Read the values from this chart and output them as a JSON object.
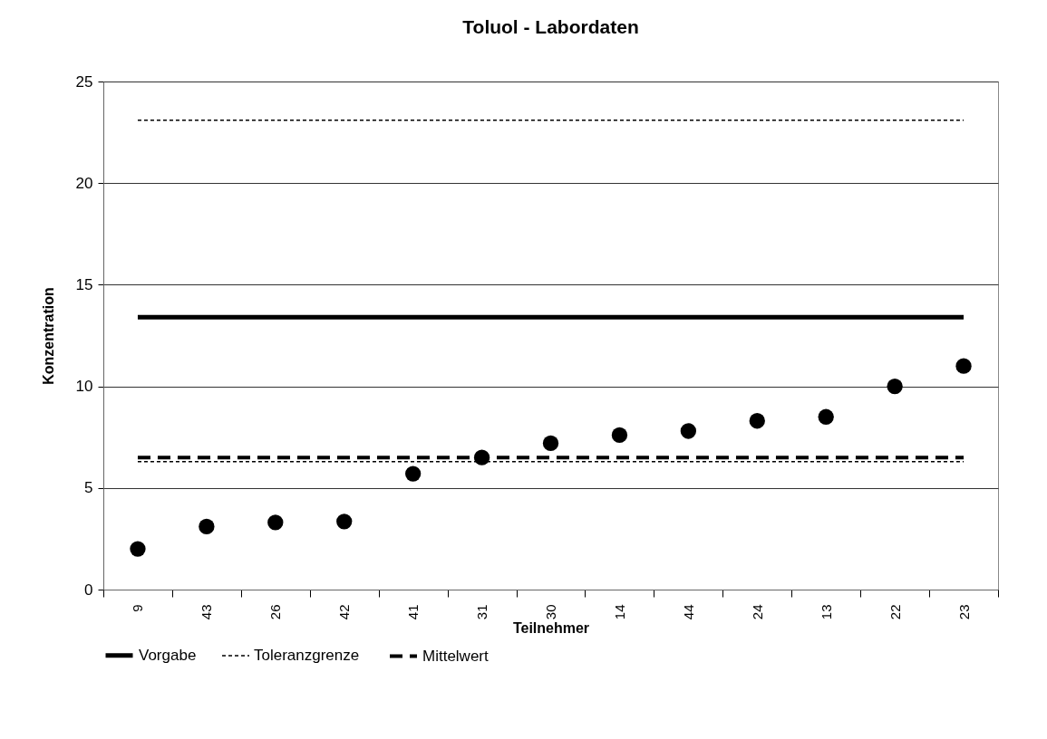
{
  "chart_data": {
    "type": "scatter",
    "title": "Toluol - Labordaten",
    "xlabel": "Teilnehmer",
    "ylabel": "Konzentration",
    "categories": [
      "9",
      "43",
      "26",
      "42",
      "41",
      "31",
      "30",
      "14",
      "44",
      "24",
      "13",
      "22",
      "23"
    ],
    "series": [
      {
        "color": "#000000",
        "values": [
          2.0,
          3.1,
          3.3,
          3.35,
          5.7,
          6.5,
          7.2,
          7.6,
          7.8,
          8.3,
          8.5,
          10.0,
          11.0
        ]
      }
    ],
    "marker": "circle",
    "ylim": [
      0,
      25
    ],
    "yticks": [
      0,
      5,
      10,
      15,
      20,
      25
    ],
    "grid": "y",
    "legend": "bottom",
    "ref_lines": [
      {
        "axis": "y",
        "value": 13.4,
        "label": "Vorgabe",
        "line_style": "solid",
        "color": "#000000"
      },
      {
        "axis": "y",
        "value": 23.1,
        "label": "Toleranzgrenze",
        "line_style": "dotted",
        "color": "#000000"
      },
      {
        "axis": "y",
        "value": 6.3,
        "line_style": "dotted",
        "color": "#000000"
      },
      {
        "axis": "y",
        "value": 6.5,
        "label": "Mittelwert",
        "line_style": "dashed",
        "color": "#000000"
      }
    ]
  }
}
